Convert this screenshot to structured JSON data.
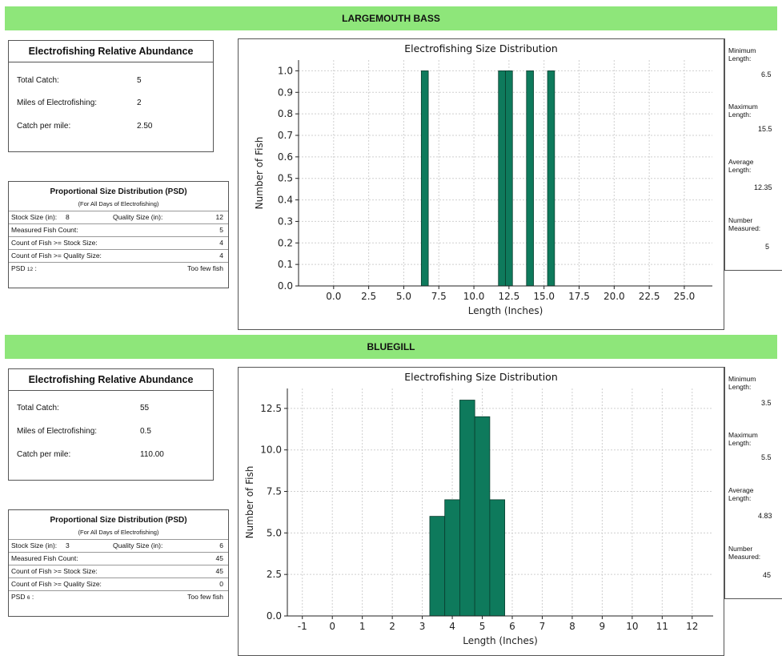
{
  "sections": [
    {
      "banner": "LARGEMOUTH BASS",
      "abundance": {
        "title": "Electrofishing Relative Abundance",
        "rows": [
          {
            "label": "Total Catch:",
            "value": "5"
          },
          {
            "label": "Miles of Electrofishing:",
            "value": "2"
          },
          {
            "label": "Catch per mile:",
            "value": "2.50"
          }
        ]
      },
      "psd": {
        "title": "Proportional Size Distribution (PSD)",
        "subtitle": "(For All Days of Electrofishing)",
        "stock_label": "Stock Size (in):",
        "stock_value": "8",
        "quality_label": "Quality Size (in):",
        "quality_value": "12",
        "rows": [
          {
            "label": "Measured Fish Count:",
            "value": "5"
          },
          {
            "label": "Count of Fish >= Stock Size:",
            "value": "4"
          },
          {
            "label": "Count of Fish >= Quality Size:",
            "value": "4"
          }
        ],
        "psd_label": "PSD",
        "psd_sub": "12",
        "psd_suffix": ":",
        "psd_value": "Too few fish"
      },
      "stats": {
        "min_label": "Minimum Length:",
        "min_value": "6.5",
        "max_label": "Maximum Length:",
        "max_value": "15.5",
        "avg_label": "Average Length:",
        "avg_value": "12.35",
        "num_label": "Number Measured:",
        "num_value": "5"
      }
    },
    {
      "banner": "BLUEGILL",
      "abundance": {
        "title": "Electrofishing Relative Abundance",
        "rows": [
          {
            "label": "Total Catch:",
            "value": "55"
          },
          {
            "label": "Miles of Electrofishing:",
            "value": "0.5"
          },
          {
            "label": "Catch per mile:",
            "value": "110.00"
          }
        ]
      },
      "psd": {
        "title": "Proportional Size Distribution (PSD)",
        "subtitle": "(For All Days of Electrofishing)",
        "stock_label": "Stock Size (in):",
        "stock_value": "3",
        "quality_label": "Quality Size (in):",
        "quality_value": "6",
        "rows": [
          {
            "label": "Measured Fish Count:",
            "value": "45"
          },
          {
            "label": "Count of Fish >= Stock Size:",
            "value": "45"
          },
          {
            "label": "Count of Fish >= Quality Size:",
            "value": "0"
          }
        ],
        "psd_label": "PSD",
        "psd_sub": "6",
        "psd_suffix": ":",
        "psd_value": "Too few fish"
      },
      "stats": {
        "min_label": "Minimum Length:",
        "min_value": "3.5",
        "max_label": "Maximum Length:",
        "max_value": "5.5",
        "avg_label": "Average Length:",
        "avg_value": "4.83",
        "num_label": "Number Measured:",
        "num_value": "45"
      }
    }
  ],
  "chart_data": [
    {
      "type": "bar",
      "title": "Electrofishing Size Distribution",
      "xlabel": "Length (Inches)",
      "ylabel": "Number of Fish",
      "xlim": [
        -2.5,
        27.0
      ],
      "ylim": [
        0,
        1.05
      ],
      "xticks": [
        0.0,
        2.5,
        5.0,
        7.5,
        10.0,
        12.5,
        15.0,
        17.5,
        20.0,
        22.5,
        25.0
      ],
      "xtick_labels": [
        "0.0",
        "2.5",
        "5.0",
        "7.5",
        "10.0",
        "12.5",
        "15.0",
        "17.5",
        "20.0",
        "22.5",
        "25.0"
      ],
      "yticks": [
        0.0,
        0.1,
        0.2,
        0.3,
        0.4,
        0.5,
        0.6,
        0.7,
        0.8,
        0.9,
        1.0
      ],
      "ytick_labels": [
        "0.0",
        "0.1",
        "0.2",
        "0.3",
        "0.4",
        "0.5",
        "0.6",
        "0.7",
        "0.8",
        "0.9",
        "1.0"
      ],
      "bar_width": 0.5,
      "x": [
        6.5,
        12.0,
        12.5,
        14.0,
        15.5
      ],
      "values": [
        1,
        1,
        1,
        1,
        1
      ],
      "bar_color": "#0e7a5c",
      "grid": true
    },
    {
      "type": "bar",
      "title": "Electrofishing Size Distribution",
      "xlabel": "Length (Inches)",
      "ylabel": "Number of Fish",
      "xlim": [
        -1.5,
        12.7
      ],
      "ylim": [
        0,
        13.7
      ],
      "xticks": [
        -1,
        0,
        1,
        2,
        3,
        4,
        5,
        6,
        7,
        8,
        9,
        10,
        11,
        12
      ],
      "xtick_labels": [
        "-1",
        "0",
        "1",
        "2",
        "3",
        "4",
        "5",
        "6",
        "7",
        "8",
        "9",
        "10",
        "11",
        "12"
      ],
      "yticks": [
        0.0,
        2.5,
        5.0,
        7.5,
        10.0,
        12.5
      ],
      "ytick_labels": [
        "0.0",
        "2.5",
        "5.0",
        "7.5",
        "10.0",
        "12.5"
      ],
      "bar_width": 0.5,
      "x": [
        3.5,
        4.0,
        4.5,
        5.0,
        5.5
      ],
      "values": [
        6,
        7,
        13,
        12,
        7
      ],
      "bar_color": "#0e7a5c",
      "grid": true
    }
  ]
}
